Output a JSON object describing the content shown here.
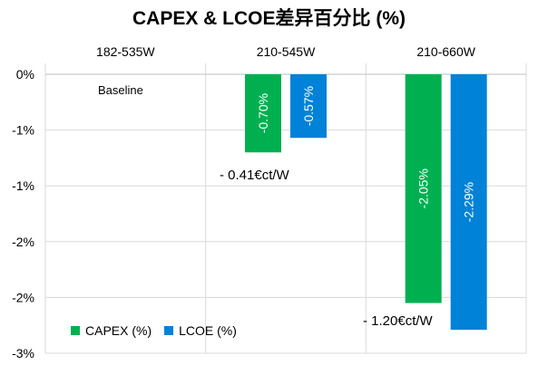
{
  "chart_data": {
    "type": "bar",
    "title": "CAPEX & LCOE差异百分比 (%)",
    "categories": [
      "182-535W",
      "210-545W",
      "210-660W"
    ],
    "series": [
      {
        "name": "CAPEX (%)",
        "color": "#00b050",
        "values": [
          0,
          -0.7,
          -2.05
        ]
      },
      {
        "name": "LCOE (%)",
        "color": "#0082d8",
        "values": [
          0,
          -0.57,
          -2.29
        ]
      }
    ],
    "data_labels": [
      [
        "",
        ""
      ],
      [
        "-0.70%",
        "-0.57%"
      ],
      [
        "-2.05%",
        "-2.29%"
      ]
    ],
    "ylim": [
      -2.5,
      0
    ],
    "yticks": [
      0,
      -0.5,
      -1.0,
      -1.5,
      -2.0,
      -2.5
    ],
    "ytick_labels": [
      "0%",
      "-1%",
      "-1%",
      "-2%",
      "-2%",
      "-3%"
    ],
    "grid": true,
    "legend": "bottom-left",
    "annotations": [
      "Baseline",
      "- 0.41€ct/W",
      "- 1.20€ct/W"
    ]
  }
}
